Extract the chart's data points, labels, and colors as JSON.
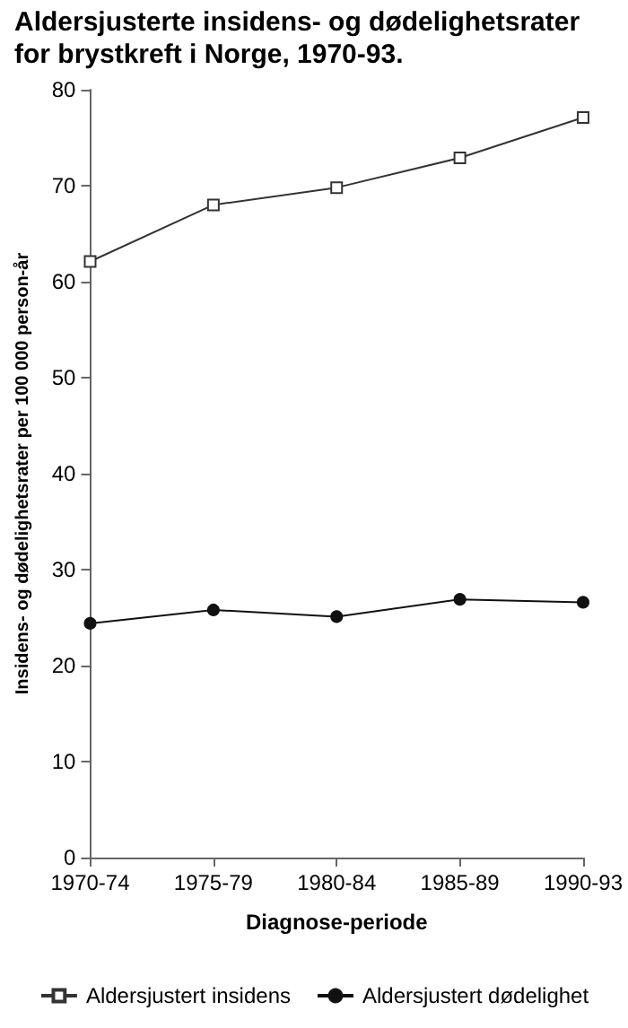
{
  "chart_data": {
    "type": "line",
    "title": "Aldersjusterte insidens- og dødelighetsrater for brystkreft i Norge, 1970-93.",
    "xlabel": "Diagnose-periode",
    "ylabel": "Insidens- og dødelighetsrater per 100 000 person-år",
    "categories": [
      "1970-74",
      "1975-79",
      "1980-84",
      "1985-89",
      "1990-93"
    ],
    "series": [
      {
        "name": "Aldersjustert insidens",
        "color": "#333333",
        "marker": "square",
        "values": [
          62.1,
          68.0,
          69.8,
          72.9,
          77.1
        ]
      },
      {
        "name": "Aldersjustert dødelighet",
        "color": "#111111",
        "marker": "circle",
        "values": [
          24.4,
          25.8,
          25.1,
          26.9,
          26.6
        ]
      }
    ],
    "ylim": [
      0,
      80
    ],
    "yticks": [
      0,
      10,
      20,
      30,
      40,
      50,
      60,
      70,
      80
    ],
    "grid": false,
    "legend": "bottom",
    "line_style": "solid"
  }
}
